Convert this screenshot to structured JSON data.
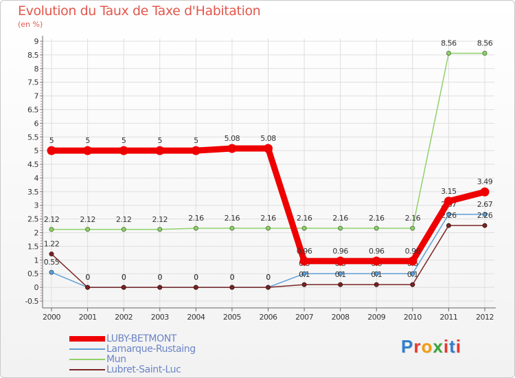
{
  "title": "Evolution du Taux de Taxe d'Habitation",
  "unit_label": "(en %)",
  "logo": {
    "letters": [
      "P",
      "r",
      "o",
      "x",
      "i",
      "t",
      "i"
    ],
    "colors": [
      "#2f7fd0",
      "#e5372f",
      "#f29c11",
      "#3aa63a",
      "#e5372f",
      "#2f7fd0",
      "#e5372f"
    ]
  },
  "chart_data": {
    "type": "line",
    "title": "Evolution du Taux de Taxe d'Habitation",
    "ylabel": "(en %)",
    "xlabel": "",
    "x": [
      "2000",
      "2001",
      "2002",
      "2003",
      "2004",
      "2005",
      "2006",
      "2007",
      "2008",
      "2009",
      "2010",
      "2011",
      "2012"
    ],
    "ylim": [
      -0.5,
      9
    ],
    "yticks": [
      "-0.5",
      "0",
      "0.5",
      "1",
      "1.5",
      "2",
      "2.5",
      "3",
      "3.5",
      "4",
      "4.5",
      "5",
      "5.5",
      "6",
      "6.5",
      "7",
      "7.5",
      "8",
      "8.5",
      "9"
    ],
    "series": [
      {
        "name": "LUBY-BETMONT",
        "color": "#ee0000",
        "emphasis": "thick",
        "values": [
          5,
          5,
          5,
          5,
          5,
          5.08,
          5.08,
          0.96,
          0.96,
          0.96,
          0.96,
          3.15,
          3.49
        ],
        "labels": [
          "5",
          "5",
          "5",
          "5",
          "5",
          "5.08",
          "5.08",
          "0.96",
          "0.96",
          "0.96",
          "0.96",
          "3.15",
          "3.49"
        ]
      },
      {
        "name": "Lamarque-Rustaing",
        "color": "#5f9fd6",
        "emphasis": "thin",
        "values": [
          0.55,
          0,
          0,
          0,
          0,
          0,
          0,
          0.5,
          0.5,
          0.5,
          0.5,
          2.67,
          2.67
        ],
        "labels": [
          "0.55",
          "0",
          "0",
          "0",
          "0",
          "0",
          "0",
          "0.5",
          "0.5",
          "0.5",
          "0.5",
          "2.67",
          "2.67"
        ]
      },
      {
        "name": "Mun",
        "color": "#8fd16a",
        "emphasis": "thin",
        "values": [
          2.12,
          2.12,
          2.12,
          2.12,
          2.16,
          2.16,
          2.16,
          2.16,
          2.16,
          2.16,
          2.16,
          8.56,
          8.56
        ],
        "labels": [
          "2.12",
          "2.12",
          "2.12",
          "2.12",
          "2.16",
          "2.16",
          "2.16",
          "2.16",
          "2.16",
          "2.16",
          "2.16",
          "8.56",
          "8.56"
        ]
      },
      {
        "name": "Lubret-Saint-Luc",
        "color": "#7a2424",
        "emphasis": "thin",
        "values": [
          1.22,
          0,
          0,
          0,
          0,
          0,
          0,
          0.1,
          0.1,
          0.1,
          0.1,
          2.26,
          2.26
        ],
        "labels": [
          "1.22",
          "0",
          "0",
          "0",
          "0",
          "0",
          "0",
          "0.1",
          "0.1",
          "0.1",
          "0.1",
          "2.26",
          "2.26"
        ]
      }
    ],
    "legend_position": "bottom-left",
    "grid": true
  }
}
